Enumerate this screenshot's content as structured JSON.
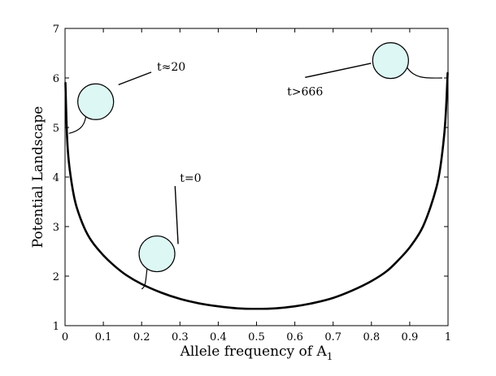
{
  "chart_data": {
    "type": "line",
    "title": "",
    "xlabel": "Allele frequency of A",
    "xlabel_subscript": "1",
    "ylabel": "Potential Landscape",
    "xlim": [
      0,
      1
    ],
    "ylim": [
      1,
      7
    ],
    "xticks": [
      "0",
      "0.1",
      "0.2",
      "0.3",
      "0.4",
      "0.5",
      "0.6",
      "0.7",
      "0.8",
      "0.9",
      "1"
    ],
    "yticks": [
      "1",
      "2",
      "3",
      "4",
      "5",
      "6",
      "7"
    ],
    "grid": false,
    "series": [
      {
        "color": "#000000",
        "x": [
          0.001,
          0.005,
          0.01,
          0.02,
          0.03,
          0.05,
          0.07,
          0.1,
          0.13,
          0.16,
          0.2,
          0.25,
          0.3,
          0.35,
          0.4,
          0.45,
          0.5,
          0.55,
          0.6,
          0.65,
          0.7,
          0.75,
          0.8,
          0.84,
          0.87,
          0.9,
          0.93,
          0.95,
          0.97,
          0.98,
          0.99,
          0.995,
          0.999
        ],
        "y": [
          5.9,
          4.85,
          4.3,
          3.75,
          3.4,
          2.98,
          2.7,
          2.42,
          2.2,
          2.02,
          1.84,
          1.67,
          1.54,
          1.45,
          1.39,
          1.35,
          1.34,
          1.35,
          1.39,
          1.46,
          1.56,
          1.71,
          1.9,
          2.1,
          2.32,
          2.58,
          2.93,
          3.3,
          3.8,
          4.2,
          4.85,
          5.4,
          6.1
        ]
      }
    ],
    "annotations": [
      {
        "label": "t=0",
        "balloon_x": 0.24,
        "balloon_y": 2.45,
        "anchor_x": 0.2,
        "anchor_y": 1.74,
        "text_x": 0.3,
        "text_y": 3.9
      },
      {
        "label": "t≈20",
        "balloon_x": 0.08,
        "balloon_y": 5.52,
        "anchor_x": 0.01,
        "anchor_y": 4.88,
        "text_x": 0.24,
        "text_y": 6.15
      },
      {
        "label": "t>666",
        "balloon_x": 0.85,
        "balloon_y": 6.35,
        "anchor_x": 0.985,
        "anchor_y": 6.0,
        "text_x": 0.58,
        "text_y": 5.65
      }
    ],
    "balloon_color": "#ddf7f4"
  }
}
